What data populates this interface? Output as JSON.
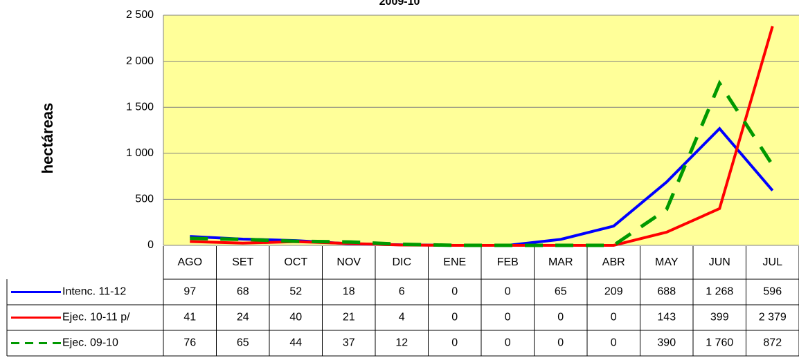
{
  "chart_data": {
    "type": "line",
    "title": "2009-10",
    "y_label": "hectáreas",
    "categories": [
      "AGO",
      "SET",
      "OCT",
      "NOV",
      "DIC",
      "ENE",
      "FEB",
      "MAR",
      "ABR",
      "MAY",
      "JUN",
      "JUL"
    ],
    "series": [
      {
        "name": "Intenc. 11-12",
        "color": "#0000ff",
        "dashed": false,
        "values": [
          97,
          68,
          52,
          18,
          6,
          0,
          0,
          65,
          209,
          688,
          1268,
          596
        ],
        "value_labels": [
          "97",
          "68",
          "52",
          "18",
          "6",
          "0",
          "0",
          "65",
          "209",
          "688",
          "1 268",
          "596"
        ]
      },
      {
        "name": "Ejec. 10-11 p/",
        "color": "#ff0000",
        "dashed": false,
        "values": [
          41,
          24,
          40,
          21,
          4,
          0,
          0,
          0,
          0,
          143,
          399,
          2379
        ],
        "value_labels": [
          "41",
          "24",
          "40",
          "21",
          "4",
          "0",
          "0",
          "0",
          "0",
          "143",
          "399",
          "2 379"
        ]
      },
      {
        "name": "Ejec. 09-10",
        "color": "#009900",
        "dashed": true,
        "values": [
          76,
          65,
          44,
          37,
          12,
          0,
          0,
          0,
          0,
          390,
          1760,
          872
        ],
        "value_labels": [
          "76",
          "65",
          "44",
          "37",
          "12",
          "0",
          "0",
          "0",
          "0",
          "390",
          "1 760",
          "872"
        ]
      }
    ],
    "ylim": [
      0,
      2500
    ],
    "yticks": [
      0,
      500,
      {
        "value": 1000,
        "label": "1 000"
      },
      {
        "value": 1500,
        "label": "1 500"
      },
      {
        "value": 2000,
        "label": "2 000"
      },
      {
        "value": 2500,
        "label": "2 500"
      }
    ],
    "grid": true
  }
}
